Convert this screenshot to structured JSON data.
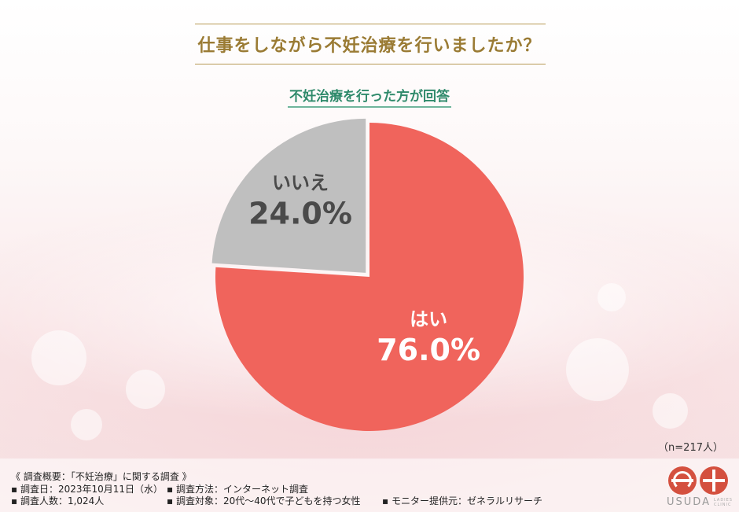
{
  "title": "仕事をしながら不妊治療を行いましたか？",
  "subtitle": "不妊治療を行った方が回答",
  "n_label": "（n=217人）",
  "colors": {
    "yes": "#f0645c",
    "no": "#bfbfbf",
    "title": "#9a7b34",
    "subtitle": "#2f8a6b"
  },
  "chart_data": {
    "type": "pie",
    "title": "仕事をしながら不妊治療を行いましたか？",
    "subtitle": "不妊治療を行った方が回答",
    "start": "12 o'clock, clockwise",
    "slices": [
      {
        "label": "はい",
        "value": 76.0,
        "display": "76.0%",
        "color": "#f0645c"
      },
      {
        "label": "いいえ",
        "value": 24.0,
        "display": "24.0%",
        "color": "#bfbfbf"
      }
    ],
    "n": 217
  },
  "footer": {
    "heading": "《 調査概要：「不妊治療」に関する調査 》",
    "items": [
      "▪ 調査日：2023年10月11日（水）",
      "▪ 調査方法：インターネット調査",
      "▪ 調査人数：1,024人",
      "▪ 調査対象：20代～40代で子どもを持つ女性",
      "▪ モニター提供元：ゼネラルリサーチ"
    ]
  },
  "logo": {
    "name": "USUDA",
    "sub": "LADIES CLINIC"
  }
}
